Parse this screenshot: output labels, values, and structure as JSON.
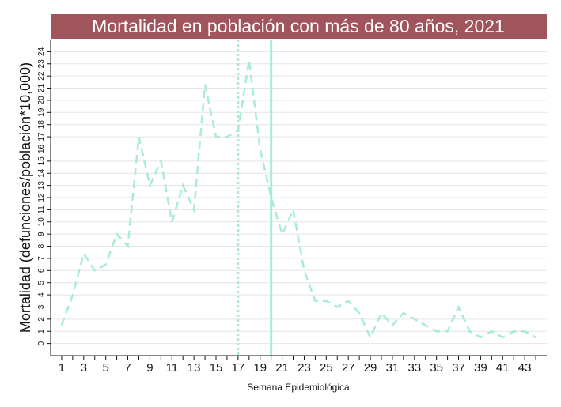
{
  "chart_data": {
    "type": "line",
    "title": "Mortalidad en población con más de 80 años, 2021",
    "xlabel": "Semana Epidemiológica",
    "ylabel": "Mortalidad (defunciones/población*10,000)",
    "xlim": [
      0,
      45
    ],
    "ylim": [
      -1,
      25
    ],
    "x_ticks": [
      1,
      3,
      5,
      7,
      9,
      11,
      13,
      15,
      17,
      19,
      21,
      23,
      25,
      27,
      29,
      31,
      33,
      35,
      37,
      39,
      41,
      43
    ],
    "x_tick_marks": [
      1,
      2,
      3,
      4,
      5,
      6,
      7,
      8,
      9,
      10,
      11,
      12,
      13,
      14,
      15,
      16,
      17,
      18,
      19,
      20,
      21,
      22,
      23,
      24,
      25,
      26,
      27,
      28,
      29,
      30,
      31,
      32,
      33,
      34,
      35,
      36,
      37,
      38,
      39,
      40,
      41,
      42,
      43,
      44
    ],
    "y_ticks": [
      0,
      1,
      2,
      3,
      4,
      5,
      6,
      7,
      8,
      9,
      10,
      11,
      12,
      13,
      14,
      15,
      16,
      17,
      18,
      19,
      20,
      21,
      22,
      23,
      24
    ],
    "grid": true,
    "series": [
      {
        "x": [
          1,
          2,
          3,
          4,
          5,
          6,
          7,
          8,
          9,
          10,
          11,
          12,
          13,
          14,
          15,
          16,
          17,
          18,
          19,
          20,
          21,
          22,
          23,
          24,
          25,
          26,
          27,
          28,
          29,
          30,
          31,
          32,
          33,
          34,
          35,
          36,
          37,
          38,
          39,
          40,
          41,
          42,
          43,
          44
        ],
        "values": [
          1.5,
          4,
          7.4,
          6,
          6.5,
          9,
          8,
          17,
          13,
          15,
          10,
          13,
          11,
          21.3,
          17,
          17,
          17.5,
          23.3,
          16,
          12,
          9,
          11,
          6,
          3.5,
          3.5,
          3,
          3.5,
          2.5,
          0.5,
          2.5,
          1.5,
          2.5,
          2,
          1.5,
          1,
          1,
          3,
          1,
          0.5,
          1,
          0.5,
          1,
          1,
          0.5
        ],
        "style": "dashed",
        "color": "#a8ecd2"
      }
    ],
    "reference_lines": [
      {
        "x": 17,
        "style": "dotted",
        "color": "#a8ecd2"
      },
      {
        "x": 20,
        "style": "solid",
        "color": "#a8ecd2"
      }
    ],
    "colors": {
      "title_bar": "#a0545c",
      "title_text": "#ffffff",
      "grid": "#e4e4e4",
      "axis": "#111111"
    }
  }
}
